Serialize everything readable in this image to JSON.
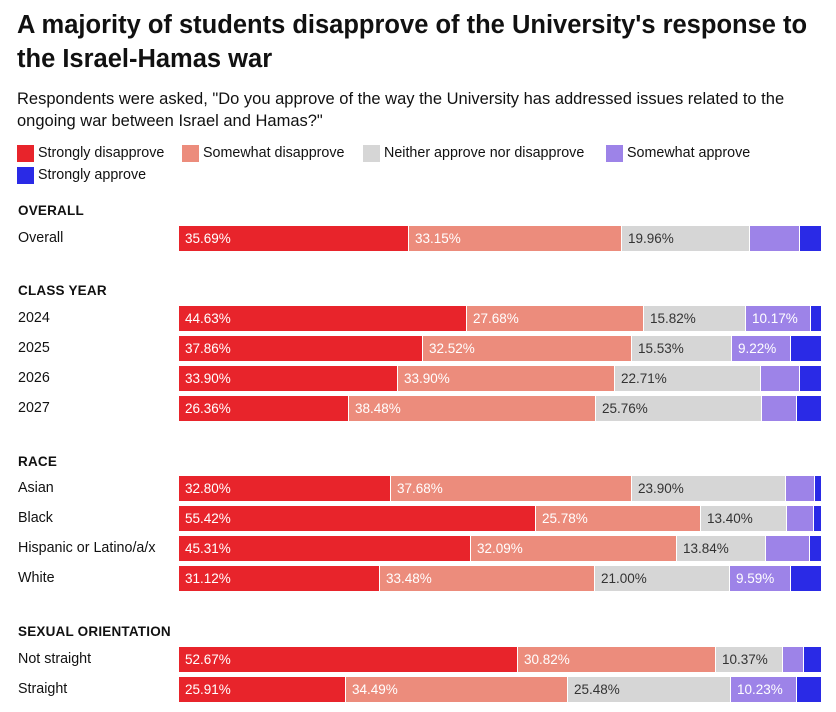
{
  "chart_data": {
    "type": "bar",
    "orientation": "horizontal-stacked-100",
    "title": "A majority of students disapprove of the University's response to the Israel-Hamas war",
    "subtitle": "Respondents were asked, \"Do you approve of the way the University has addressed issues related to the ongoing war between Israel and Hamas?\"",
    "series": [
      {
        "name": "Strongly disapprove",
        "color": "#e8242b",
        "label_color": "#ffffff"
      },
      {
        "name": "Somewhat disapprove",
        "color": "#ec8c7c",
        "label_color": "#ffffff"
      },
      {
        "name": "Neither approve nor disapprove",
        "color": "#d6d6d6",
        "label_color": "#333333"
      },
      {
        "name": "Somewhat approve",
        "color": "#9d83e8",
        "label_color": "#ffffff"
      },
      {
        "name": "Strongly approve",
        "color": "#2a2ae6",
        "label_color": "#ffffff"
      }
    ],
    "groups": [
      {
        "name": "OVERALL",
        "rows": [
          {
            "label": "Overall",
            "values": [
              35.69,
              33.15,
              19.96,
              7.7,
              3.5
            ],
            "labels": [
              "35.69%",
              "33.15%",
              "19.96%",
              "",
              ""
            ]
          }
        ]
      },
      {
        "name": "CLASS YEAR",
        "rows": [
          {
            "label": "2024",
            "values": [
              44.63,
              27.68,
              15.82,
              10.17,
              1.7
            ],
            "labels": [
              "44.63%",
              "27.68%",
              "15.82%",
              "10.17%",
              ""
            ]
          },
          {
            "label": "2025",
            "values": [
              37.86,
              32.52,
              15.53,
              9.22,
              4.87
            ],
            "labels": [
              "37.86%",
              "32.52%",
              "15.53%",
              "9.22%",
              ""
            ]
          },
          {
            "label": "2026",
            "values": [
              33.9,
              33.9,
              22.71,
              6.1,
              3.39
            ],
            "labels": [
              "33.90%",
              "33.90%",
              "22.71%",
              "",
              ""
            ]
          },
          {
            "label": "2027",
            "values": [
              26.36,
              38.48,
              25.76,
              5.5,
              3.9
            ],
            "labels": [
              "26.36%",
              "38.48%",
              "25.76%",
              "",
              ""
            ]
          }
        ]
      },
      {
        "name": "RACE",
        "rows": [
          {
            "label": "Asian",
            "values": [
              32.8,
              37.68,
              23.9,
              4.5,
              1.12
            ],
            "labels": [
              "32.80%",
              "37.68%",
              "23.90%",
              "",
              ""
            ]
          },
          {
            "label": "Black",
            "values": [
              55.42,
              25.78,
              13.4,
              4.2,
              1.2
            ],
            "labels": [
              "55.42%",
              "25.78%",
              "13.40%",
              "",
              ""
            ]
          },
          {
            "label": "Hispanic or Latino/a/x",
            "values": [
              45.31,
              32.09,
              13.84,
              6.9,
              1.86
            ],
            "labels": [
              "45.31%",
              "32.09%",
              "13.84%",
              "",
              ""
            ]
          },
          {
            "label": "White",
            "values": [
              31.12,
              33.48,
              21.0,
              9.59,
              4.81
            ],
            "labels": [
              "31.12%",
              "33.48%",
              "21.00%",
              "9.59%",
              ""
            ]
          }
        ]
      },
      {
        "name": "SEXUAL ORIENTATION",
        "rows": [
          {
            "label": "Not straight",
            "values": [
              52.67,
              30.82,
              10.37,
              3.4,
              2.74
            ],
            "labels": [
              "52.67%",
              "30.82%",
              "10.37%",
              "",
              ""
            ]
          },
          {
            "label": "Straight",
            "values": [
              25.91,
              34.49,
              25.48,
              10.23,
              3.89
            ],
            "labels": [
              "25.91%",
              "34.49%",
              "25.48%",
              "10.23%",
              ""
            ]
          }
        ]
      }
    ]
  }
}
